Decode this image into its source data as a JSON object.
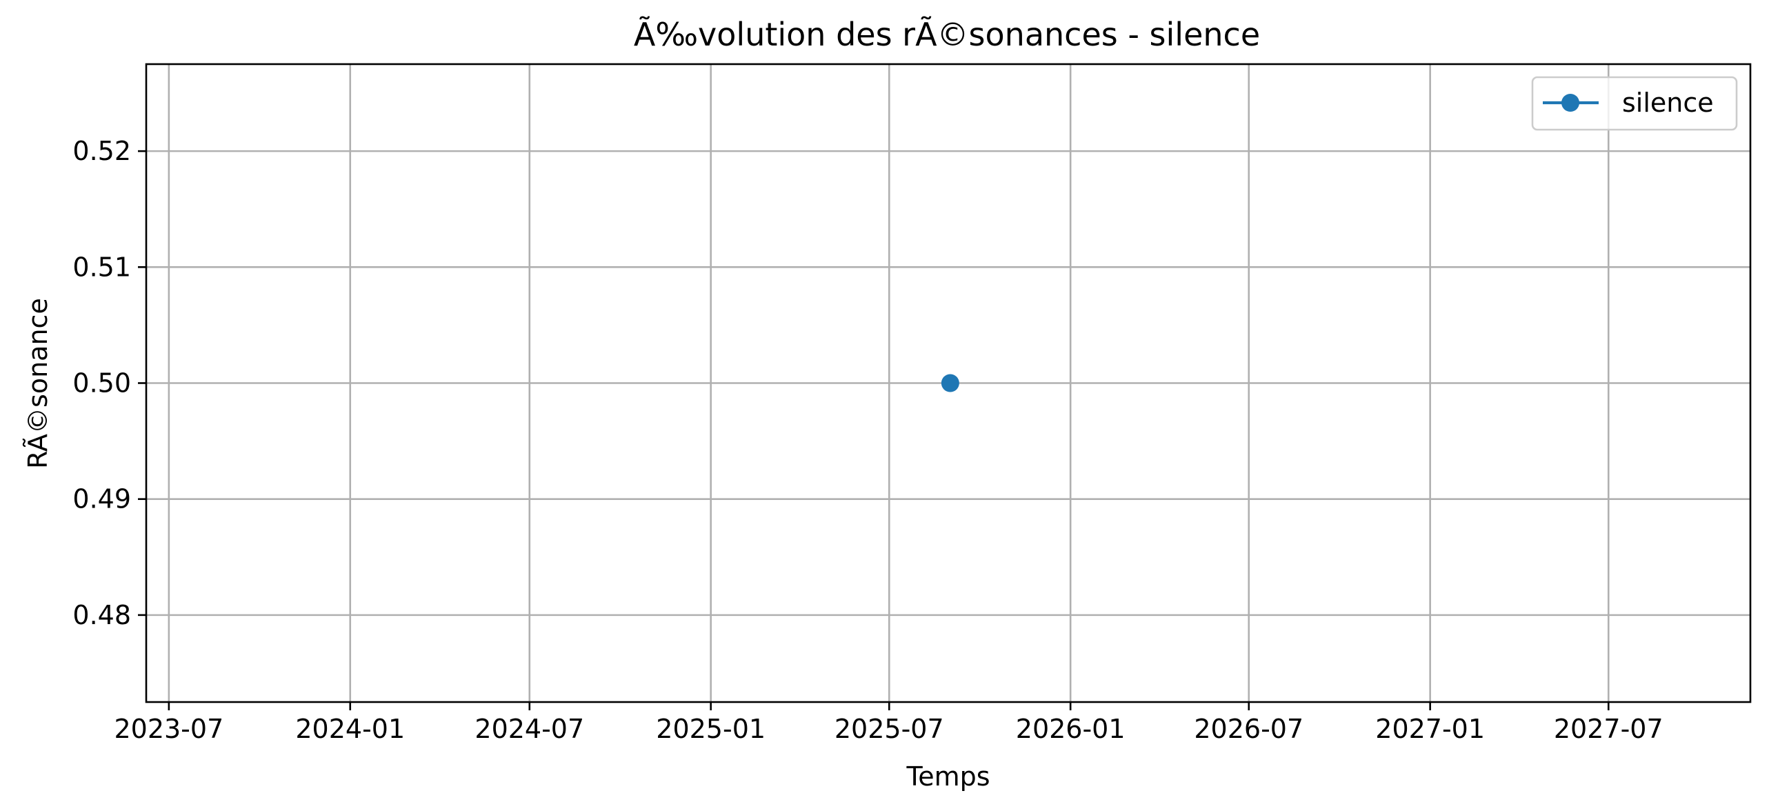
{
  "chart_data": {
    "type": "line",
    "title": "Ã‰volution des rÃ©sonances - silence",
    "xlabel": "Temps",
    "ylabel": "RÃ©sonance",
    "x_type": "date",
    "xlim": [
      "2023-06-08",
      "2027-11-22"
    ],
    "ylim": [
      0.4725,
      0.5275
    ],
    "x_ticks": [
      "2023-07-01",
      "2024-01-01",
      "2024-07-01",
      "2025-01-01",
      "2025-07-01",
      "2026-01-01",
      "2026-07-01",
      "2027-01-01",
      "2027-07-01"
    ],
    "x_tick_labels": [
      "2023-07",
      "2024-01",
      "2024-07",
      "2025-01",
      "2025-07",
      "2026-01",
      "2026-07",
      "2027-01",
      "2027-07"
    ],
    "y_ticks": [
      0.48,
      0.49,
      0.5,
      0.51,
      0.52
    ],
    "y_tick_labels": [
      "0.48",
      "0.49",
      "0.50",
      "0.51",
      "0.52"
    ],
    "grid": true,
    "legend_position": "top-right",
    "series": [
      {
        "name": "silence",
        "color": "#1f77b4",
        "marker": "circle",
        "points": [
          {
            "x": "2025-09-01",
            "y": 0.5
          }
        ]
      }
    ]
  }
}
